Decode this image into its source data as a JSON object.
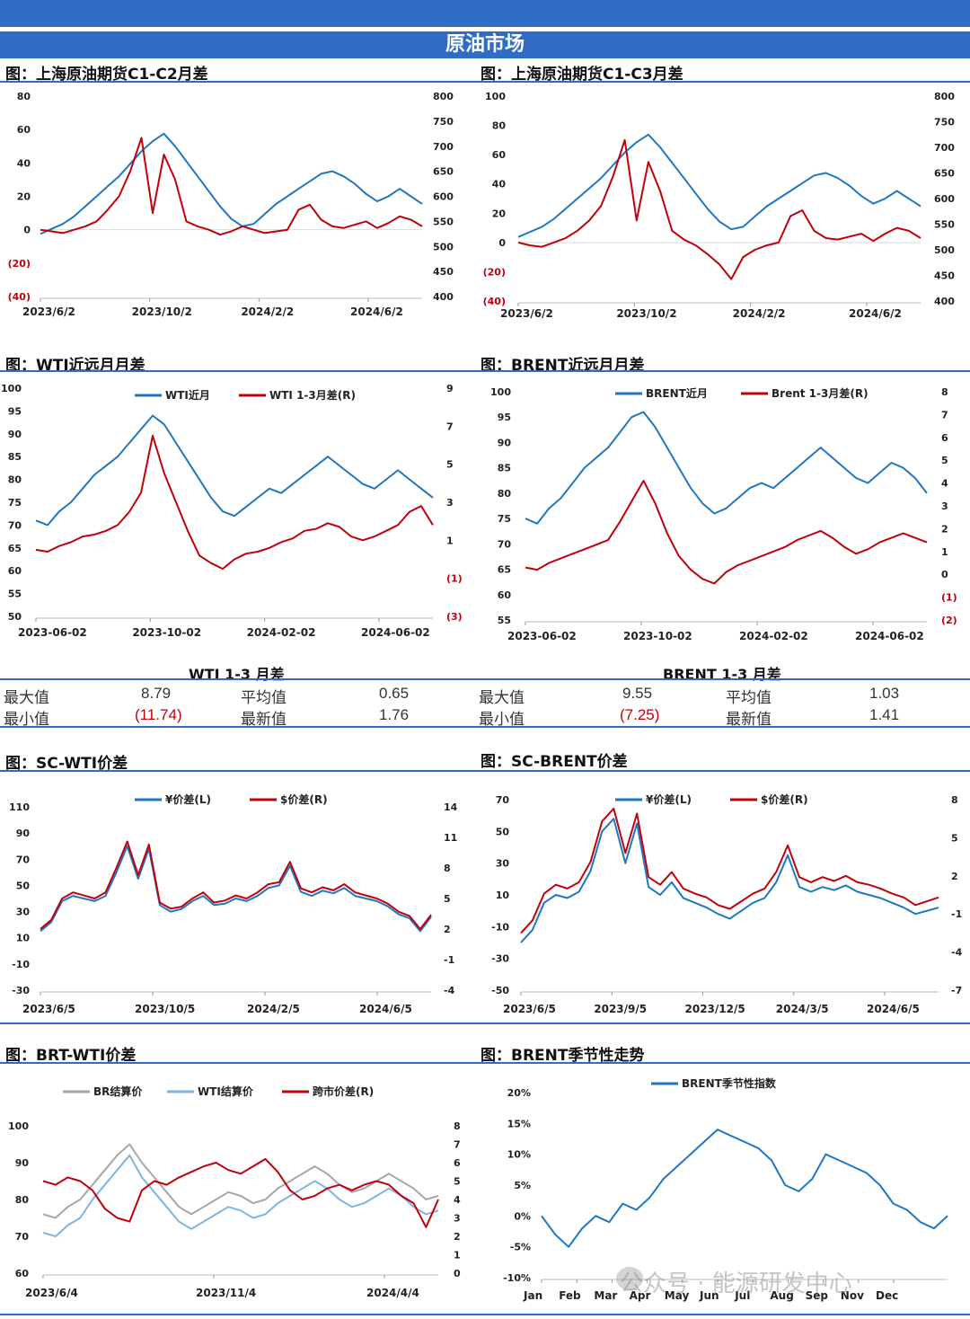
{
  "header": {
    "title": "原油市场"
  },
  "sections": {
    "c1c2": "图：上海原油期货C1-C2月差",
    "c1c3": "图：上海原油期货C1-C3月差",
    "wti": "图：WTI近远月月差",
    "brent": "图：BRENT近远月月差",
    "scwti": "图：SC-WTI价差",
    "scbrent": "图：SC-BRENT价差",
    "brtwti": "图：BRT-WTI价差",
    "season": "图：BRENT季节性走势"
  },
  "stats": {
    "wti": {
      "title": "WTI 1-3 月差",
      "max_label": "最大值",
      "max": "8.79",
      "min_label": "最小值",
      "min": "(11.74)",
      "avg_label": "平均值",
      "avg": "0.65",
      "latest_label": "最新值",
      "latest": "1.76"
    },
    "brent": {
      "title": "BRENT 1-3 月差",
      "max_label": "最大值",
      "max": "9.55",
      "min_label": "最小值",
      "min": "(7.25)",
      "avg_label": "平均值",
      "avg": "1.03",
      "latest_label": "最新值",
      "latest": "1.41"
    }
  },
  "watermark": "公众号 · 能源研发中心",
  "colors": {
    "blue": "#1f77c4",
    "red": "#c0000b",
    "gray": "#a6a6a6",
    "lightblue": "#7fb4e0",
    "accent": "#2f6dc4"
  },
  "chart_data": [
    {
      "id": "c1c2",
      "type": "line",
      "ylim_left": [
        -40,
        80
      ],
      "ylim_right": [
        400,
        800
      ],
      "yticks_left": [
        "80",
        "60",
        "40",
        "20",
        "0",
        "(20)",
        "(40)"
      ],
      "yticks_right": [
        "800",
        "750",
        "700",
        "650",
        "600",
        "550",
        "500",
        "450",
        "400"
      ],
      "xticks": [
        "2023/6/2",
        "2023/10/2",
        "2024/2/2",
        "2024/6/2"
      ],
      "series": [
        {
          "axis": "right",
          "color": "blue",
          "values": [
            525,
            535,
            545,
            560,
            580,
            600,
            620,
            640,
            665,
            690,
            710,
            725,
            700,
            670,
            640,
            610,
            580,
            555,
            540,
            545,
            565,
            585,
            600,
            615,
            630,
            645,
            650,
            640,
            625,
            605,
            590,
            600,
            615,
            600,
            585
          ]
        },
        {
          "axis": "left",
          "color": "red",
          "values": [
            0,
            -1,
            -2,
            0,
            2,
            5,
            12,
            20,
            35,
            55,
            10,
            45,
            30,
            5,
            2,
            0,
            -3,
            -1,
            2,
            0,
            -2,
            -1,
            0,
            12,
            15,
            6,
            2,
            1,
            3,
            5,
            1,
            4,
            8,
            6,
            2
          ]
        }
      ]
    },
    {
      "id": "c1c3",
      "type": "line",
      "ylim_left": [
        -40,
        100
      ],
      "ylim_right": [
        400,
        800
      ],
      "yticks_left": [
        "100",
        "80",
        "60",
        "40",
        "20",
        "0",
        "(20)",
        "(40)"
      ],
      "yticks_right": [
        "800",
        "750",
        "700",
        "650",
        "600",
        "550",
        "500",
        "450",
        "400"
      ],
      "xticks": [
        "2023/6/2",
        "2023/10/2",
        "2024/2/2",
        "2024/6/2"
      ],
      "series": [
        {
          "axis": "right",
          "color": "blue",
          "values": [
            525,
            535,
            545,
            560,
            580,
            600,
            620,
            640,
            665,
            690,
            710,
            725,
            700,
            670,
            640,
            610,
            580,
            555,
            540,
            545,
            565,
            585,
            600,
            615,
            630,
            645,
            650,
            640,
            625,
            605,
            590,
            600,
            615,
            600,
            585
          ]
        },
        {
          "axis": "left",
          "color": "red",
          "values": [
            0,
            -2,
            -3,
            0,
            3,
            8,
            15,
            25,
            45,
            70,
            15,
            55,
            35,
            8,
            2,
            -2,
            -8,
            -15,
            -25,
            -10,
            -5,
            -2,
            0,
            18,
            22,
            8,
            3,
            2,
            4,
            6,
            1,
            6,
            10,
            8,
            3
          ]
        }
      ]
    },
    {
      "id": "wti",
      "type": "line",
      "ylim_left": [
        50,
        100
      ],
      "ylim_right": [
        -3,
        9
      ],
      "yticks_left": [
        "100",
        "95",
        "90",
        "85",
        "80",
        "75",
        "70",
        "65",
        "60",
        "55",
        "50"
      ],
      "yticks_right": [
        "9",
        "7",
        "5",
        "3",
        "1",
        "(1)",
        "(3)"
      ],
      "xticks": [
        "2023-06-02",
        "2023-10-02",
        "2024-02-02",
        "2024-06-02"
      ],
      "legend": [
        "WTI近月",
        "WTI 1-3月差(R)"
      ],
      "series": [
        {
          "name": "WTI近月",
          "axis": "left",
          "color": "blue",
          "values": [
            71,
            70,
            73,
            75,
            78,
            81,
            83,
            85,
            88,
            91,
            94,
            92,
            88,
            84,
            80,
            76,
            73,
            72,
            74,
            76,
            78,
            77,
            79,
            81,
            83,
            85,
            83,
            81,
            79,
            78,
            80,
            82,
            80,
            78,
            76
          ]
        },
        {
          "name": "WTI 1-3月差(R)",
          "axis": "right",
          "color": "red",
          "values": [
            0.5,
            0.4,
            0.7,
            0.9,
            1.2,
            1.3,
            1.5,
            1.8,
            2.5,
            3.5,
            6.5,
            4.5,
            3.0,
            1.5,
            0.2,
            -0.2,
            -0.5,
            0.0,
            0.3,
            0.4,
            0.6,
            0.9,
            1.1,
            1.5,
            1.6,
            1.9,
            1.7,
            1.2,
            1.0,
            1.2,
            1.5,
            1.8,
            2.5,
            2.8,
            1.8
          ]
        }
      ]
    },
    {
      "id": "brent",
      "type": "line",
      "ylim_left": [
        55,
        100
      ],
      "ylim_right": [
        -2,
        8
      ],
      "yticks_left": [
        "100",
        "95",
        "90",
        "85",
        "80",
        "75",
        "70",
        "65",
        "60",
        "55"
      ],
      "yticks_right": [
        "8",
        "7",
        "6",
        "5",
        "4",
        "3",
        "2",
        "1",
        "0",
        "(1)",
        "(2)"
      ],
      "xticks": [
        "2023-06-02",
        "2023-10-02",
        "2024-02-02",
        "2024-06-02"
      ],
      "legend": [
        "BRENT近月",
        "Brent 1-3月差(R)"
      ],
      "series": [
        {
          "name": "BRENT近月",
          "axis": "left",
          "color": "blue",
          "values": [
            75,
            74,
            77,
            79,
            82,
            85,
            87,
            89,
            92,
            95,
            96,
            93,
            89,
            85,
            81,
            78,
            76,
            77,
            79,
            81,
            82,
            81,
            83,
            85,
            87,
            89,
            87,
            85,
            83,
            82,
            84,
            86,
            85,
            83,
            80
          ]
        },
        {
          "name": "Brent 1-3月差(R)",
          "axis": "right",
          "color": "red",
          "values": [
            0.3,
            0.2,
            0.5,
            0.7,
            0.9,
            1.1,
            1.3,
            1.5,
            2.3,
            3.2,
            4.1,
            3.1,
            1.8,
            0.8,
            0.2,
            -0.2,
            -0.4,
            0.1,
            0.4,
            0.6,
            0.8,
            1.0,
            1.2,
            1.5,
            1.7,
            1.9,
            1.6,
            1.2,
            0.9,
            1.1,
            1.4,
            1.6,
            1.8,
            1.6,
            1.4
          ]
        }
      ]
    },
    {
      "id": "scwti",
      "type": "line",
      "ylim_left": [
        -30,
        110
      ],
      "ylim_right": [
        -4,
        14
      ],
      "yticks_left": [
        "110",
        "90",
        "70",
        "50",
        "30",
        "10",
        "-10",
        "-30"
      ],
      "yticks_right": [
        "14",
        "11",
        "8",
        "5",
        "2",
        "-1",
        "-4"
      ],
      "xticks": [
        "2023/6/5",
        "2023/10/5",
        "2024/2/5",
        "2024/6/5"
      ],
      "legend": [
        "¥价差(L)",
        "$价差(R)"
      ],
      "series": [
        {
          "name": "¥价差(L)",
          "axis": "left",
          "color": "blue",
          "values": [
            15,
            22,
            38,
            42,
            40,
            38,
            42,
            60,
            80,
            55,
            78,
            35,
            30,
            32,
            38,
            42,
            35,
            36,
            40,
            38,
            42,
            48,
            50,
            65,
            45,
            42,
            46,
            44,
            48,
            42,
            40,
            38,
            34,
            28,
            25,
            15,
            26
          ]
        },
        {
          "name": "$价差(R)",
          "axis": "right",
          "color": "red",
          "values": [
            2.0,
            2.9,
            5.0,
            5.6,
            5.3,
            5.0,
            5.6,
            8.0,
            10.6,
            7.3,
            10.3,
            4.6,
            4.0,
            4.2,
            5.0,
            5.6,
            4.6,
            4.8,
            5.3,
            5.0,
            5.6,
            6.4,
            6.6,
            8.6,
            6.0,
            5.6,
            6.1,
            5.8,
            6.4,
            5.6,
            5.3,
            5.0,
            4.5,
            3.7,
            3.3,
            2.0,
            3.4
          ]
        }
      ]
    },
    {
      "id": "scbrent",
      "type": "line",
      "ylim_left": [
        -50,
        70
      ],
      "ylim_right": [
        -7,
        8
      ],
      "yticks_left": [
        "70",
        "50",
        "30",
        "10",
        "-10",
        "-30",
        "-50"
      ],
      "yticks_right": [
        "8",
        "5",
        "2",
        "-1",
        "-4",
        "-7"
      ],
      "xticks": [
        "2023/6/5",
        "2023/9/5",
        "2023/12/5",
        "2024/3/5",
        "2024/6/5"
      ],
      "legend": [
        "¥价差(L)",
        "$价差(R)"
      ],
      "series": [
        {
          "name": "¥价差(L)",
          "axis": "left",
          "color": "blue",
          "values": [
            -20,
            -12,
            5,
            10,
            8,
            12,
            25,
            50,
            58,
            30,
            55,
            15,
            10,
            18,
            8,
            5,
            2,
            -2,
            -5,
            0,
            5,
            8,
            18,
            35,
            15,
            12,
            15,
            13,
            16,
            12,
            10,
            8,
            5,
            2,
            -2,
            0,
            2
          ]
        },
        {
          "name": "$价差(R)",
          "axis": "right",
          "color": "red",
          "values": [
            -2.5,
            -1.5,
            0.6,
            1.3,
            1.0,
            1.5,
            3.1,
            6.3,
            7.3,
            3.8,
            6.9,
            1.9,
            1.3,
            2.3,
            1.0,
            0.6,
            0.3,
            -0.3,
            -0.6,
            0.0,
            0.6,
            1.0,
            2.3,
            4.4,
            1.9,
            1.5,
            1.9,
            1.6,
            2.0,
            1.5,
            1.3,
            1.0,
            0.6,
            0.3,
            -0.3,
            0.0,
            0.3
          ]
        }
      ]
    },
    {
      "id": "brtwti",
      "type": "line",
      "ylim_left": [
        60,
        100
      ],
      "ylim_right": [
        0,
        8
      ],
      "yticks_left": [
        "100",
        "90",
        "80",
        "70",
        "60"
      ],
      "yticks_right": [
        "8",
        "7",
        "6",
        "5",
        "4",
        "3",
        "2",
        "1",
        "0"
      ],
      "xticks": [
        "2023/6/4",
        "2023/11/4",
        "2024/4/4"
      ],
      "legend": [
        "BR结算价",
        "WTI结算价",
        "跨市价差(R)"
      ],
      "series": [
        {
          "name": "BR结算价",
          "axis": "left",
          "color": "gray",
          "values": [
            76,
            75,
            78,
            80,
            84,
            88,
            92,
            95,
            90,
            86,
            82,
            78,
            76,
            78,
            80,
            82,
            81,
            79,
            80,
            83,
            85,
            87,
            89,
            87,
            84,
            82,
            83,
            85,
            87,
            85,
            83,
            80,
            81
          ]
        },
        {
          "name": "WTI结算价",
          "axis": "left",
          "color": "lightblue",
          "values": [
            71,
            70,
            73,
            75,
            80,
            84,
            88,
            92,
            86,
            82,
            78,
            74,
            72,
            74,
            76,
            78,
            77,
            75,
            76,
            79,
            81,
            83,
            85,
            83,
            80,
            78,
            79,
            81,
            83,
            81,
            78,
            76,
            77
          ]
        },
        {
          "name": "跨市价差(R)",
          "axis": "right",
          "color": "red",
          "values": [
            5.0,
            4.8,
            5.2,
            5.0,
            4.5,
            3.5,
            3.0,
            2.8,
            4.5,
            5.0,
            4.8,
            5.2,
            5.5,
            5.8,
            6.0,
            5.6,
            5.4,
            5.8,
            6.2,
            5.5,
            4.5,
            4.0,
            4.2,
            4.6,
            4.8,
            4.5,
            4.8,
            5.0,
            4.8,
            4.2,
            3.8,
            2.5,
            4.0
          ]
        }
      ]
    },
    {
      "id": "season",
      "type": "line",
      "ylim_left": [
        -0.1,
        0.2
      ],
      "yticks_left": [
        "20%",
        "15%",
        "10%",
        "5%",
        "0%",
        "-5%",
        "-10%"
      ],
      "xticks": [
        "Jan",
        "Feb",
        "Mar",
        "Apr",
        "May",
        "Jun",
        "Jul",
        "Aug",
        "Sep",
        "Nov",
        "Dec"
      ],
      "legend": [
        "BRENT季节性指数"
      ],
      "series": [
        {
          "name": "BRENT季节性指数",
          "axis": "left",
          "color": "blue",
          "values": [
            0.0,
            -0.03,
            -0.05,
            -0.02,
            0.0,
            -0.01,
            0.02,
            0.01,
            0.03,
            0.06,
            0.08,
            0.1,
            0.12,
            0.14,
            0.13,
            0.12,
            0.11,
            0.09,
            0.05,
            0.04,
            0.06,
            0.1,
            0.09,
            0.08,
            0.07,
            0.05,
            0.02,
            0.01,
            -0.01,
            -0.02,
            0.0
          ]
        }
      ]
    }
  ]
}
